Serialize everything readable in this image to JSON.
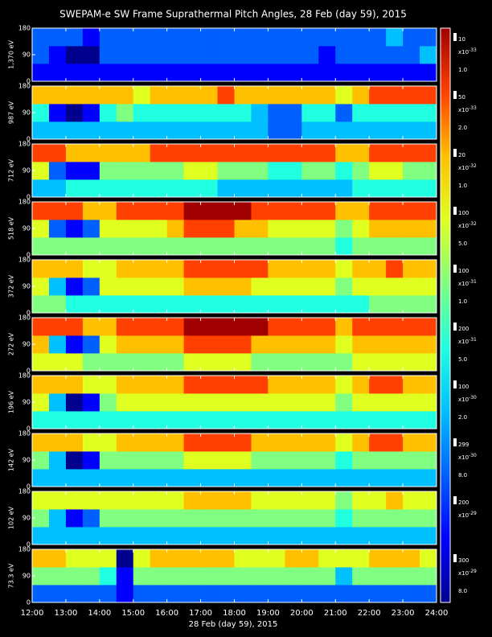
{
  "title": "SWEPAM-e SW Frame Suprathermal Pitch Angles, 28 Feb (day  59), 2015",
  "xlabel": "28 Feb (day  59), 2015",
  "xlim": [
    12,
    24
  ],
  "xticks": [
    {
      "value": 12,
      "label": "12:00"
    },
    {
      "value": 13,
      "label": "13:00"
    },
    {
      "value": 14,
      "label": "14:00"
    },
    {
      "value": 15,
      "label": "15:00"
    },
    {
      "value": 16,
      "label": "16:00"
    },
    {
      "value": 17,
      "label": "17:00"
    },
    {
      "value": 18,
      "label": "18:00"
    },
    {
      "value": 19,
      "label": "19:00"
    },
    {
      "value": 20,
      "label": "20:00"
    },
    {
      "value": 21,
      "label": "21:00"
    },
    {
      "value": 22,
      "label": "22:00"
    },
    {
      "value": 23,
      "label": "23:00"
    },
    {
      "value": 24,
      "label": "24:00"
    }
  ],
  "colors": [
    "#00008f",
    "#0000ff",
    "#0060ff",
    "#00c0ff",
    "#20ffdf",
    "#80ff80",
    "#dfff20",
    "#ffc000",
    "#ff4000",
    "#a00000"
  ],
  "chart_data": [
    {
      "type": "heatmap",
      "ylabel": "1,370 eV",
      "ylim": [
        0,
        180
      ],
      "yticks": [
        0,
        90,
        180
      ],
      "colorbar": {
        "top": "10",
        "scale": "x10",
        "exponent": "-33",
        "bottom": "1.0"
      },
      "z": [
        [
          1,
          1,
          1,
          1,
          1,
          1,
          1,
          1,
          1,
          1,
          1,
          1,
          1,
          1,
          1,
          1,
          1,
          1,
          1,
          1,
          1,
          1,
          1,
          1
        ],
        [
          2,
          1,
          0,
          0,
          2,
          2,
          2,
          2,
          2,
          2,
          2,
          2,
          2,
          2,
          2,
          2,
          2,
          1,
          2,
          2,
          2,
          2,
          2,
          3
        ],
        [
          2,
          2,
          2,
          1,
          2,
          2,
          2,
          2,
          2,
          2,
          2,
          2,
          2,
          2,
          2,
          2,
          2,
          2,
          2,
          2,
          2,
          3,
          2,
          2
        ]
      ]
    },
    {
      "type": "heatmap",
      "ylabel": "987 eV",
      "ylim": [
        0,
        180
      ],
      "yticks": [
        0,
        90,
        180
      ],
      "colorbar": {
        "top": "50",
        "scale": "x10",
        "exponent": "-33",
        "bottom": "2.0"
      },
      "z": [
        [
          3,
          3,
          3,
          3,
          3,
          3,
          3,
          3,
          3,
          3,
          3,
          3,
          3,
          3,
          2,
          2,
          3,
          3,
          3,
          3,
          3,
          3,
          3,
          3
        ],
        [
          4,
          1,
          0,
          1,
          4,
          5,
          4,
          4,
          4,
          4,
          4,
          4,
          4,
          3,
          2,
          2,
          4,
          4,
          2,
          4,
          4,
          4,
          4,
          4
        ],
        [
          7,
          7,
          7,
          7,
          7,
          7,
          6,
          7,
          7,
          7,
          7,
          8,
          7,
          7,
          7,
          7,
          7,
          7,
          6,
          7,
          8,
          8,
          8,
          8
        ]
      ]
    },
    {
      "type": "heatmap",
      "ylabel": "712 eV",
      "ylim": [
        0,
        180
      ],
      "yticks": [
        0,
        90,
        180
      ],
      "colorbar": {
        "top": "20",
        "scale": "x10",
        "exponent": "-32",
        "bottom": "1.0"
      },
      "z": [
        [
          3,
          3,
          4,
          4,
          4,
          4,
          4,
          4,
          4,
          4,
          4,
          3,
          3,
          3,
          3,
          3,
          3,
          3,
          3,
          4,
          4,
          4,
          4,
          4
        ],
        [
          6,
          2,
          1,
          1,
          5,
          5,
          5,
          5,
          5,
          6,
          6,
          5,
          5,
          5,
          4,
          4,
          5,
          5,
          4,
          5,
          6,
          6,
          5,
          5
        ],
        [
          8,
          8,
          7,
          7,
          7,
          7,
          7,
          8,
          8,
          8,
          8,
          8,
          8,
          8,
          8,
          8,
          8,
          8,
          7,
          7,
          8,
          8,
          8,
          8
        ]
      ]
    },
    {
      "type": "heatmap",
      "ylabel": "518 eV",
      "ylim": [
        0,
        180
      ],
      "yticks": [
        0,
        90,
        180
      ],
      "colorbar": {
        "top": "100",
        "scale": "x10",
        "exponent": "-32",
        "bottom": "5.0"
      },
      "z": [
        [
          5,
          5,
          5,
          5,
          5,
          5,
          5,
          5,
          5,
          5,
          5,
          5,
          5,
          5,
          5,
          5,
          5,
          5,
          4,
          5,
          5,
          5,
          5,
          5
        ],
        [
          6,
          2,
          1,
          2,
          6,
          6,
          6,
          6,
          7,
          8,
          8,
          8,
          7,
          7,
          6,
          6,
          6,
          6,
          5,
          6,
          7,
          7,
          7,
          7
        ],
        [
          8,
          8,
          8,
          7,
          7,
          8,
          8,
          8,
          8,
          9,
          9,
          9,
          9,
          8,
          8,
          8,
          8,
          8,
          7,
          7,
          8,
          8,
          8,
          8
        ]
      ]
    },
    {
      "type": "heatmap",
      "ylabel": "372 eV",
      "ylim": [
        0,
        180
      ],
      "yticks": [
        0,
        90,
        180
      ],
      "colorbar": {
        "top": "100",
        "scale": "x10",
        "exponent": "-31",
        "bottom": "1.0"
      },
      "z": [
        [
          5,
          5,
          4,
          4,
          4,
          4,
          4,
          4,
          4,
          4,
          4,
          4,
          4,
          4,
          4,
          4,
          4,
          4,
          4,
          4,
          5,
          5,
          5,
          5
        ],
        [
          6,
          3,
          1,
          2,
          6,
          6,
          6,
          6,
          6,
          7,
          7,
          7,
          7,
          6,
          6,
          6,
          6,
          6,
          5,
          6,
          6,
          6,
          6,
          6
        ],
        [
          7,
          7,
          7,
          6,
          6,
          7,
          7,
          7,
          7,
          8,
          8,
          8,
          8,
          8,
          7,
          7,
          7,
          7,
          6,
          7,
          7,
          8,
          7,
          7
        ]
      ]
    },
    {
      "type": "heatmap",
      "ylabel": "272 eV",
      "ylim": [
        0,
        180
      ],
      "yticks": [
        0,
        90,
        180
      ],
      "colorbar": {
        "top": "200",
        "scale": "x10",
        "exponent": "-31",
        "bottom": "5.0"
      },
      "z": [
        [
          6,
          6,
          6,
          5,
          5,
          5,
          5,
          5,
          5,
          6,
          6,
          6,
          6,
          5,
          5,
          5,
          5,
          5,
          5,
          6,
          6,
          6,
          6,
          6
        ],
        [
          7,
          3,
          1,
          2,
          6,
          7,
          7,
          7,
          7,
          8,
          8,
          8,
          8,
          7,
          7,
          7,
          7,
          7,
          6,
          7,
          7,
          7,
          7,
          7
        ],
        [
          8,
          8,
          8,
          7,
          7,
          8,
          8,
          8,
          8,
          9,
          9,
          9,
          9,
          9,
          8,
          8,
          8,
          8,
          7,
          8,
          8,
          8,
          8,
          8
        ]
      ]
    },
    {
      "type": "heatmap",
      "ylabel": "196 eV",
      "ylim": [
        0,
        180
      ],
      "yticks": [
        0,
        90,
        180
      ],
      "colorbar": {
        "top": "100",
        "scale": "x10",
        "exponent": "-30",
        "bottom": "2.0"
      },
      "z": [
        [
          4,
          4,
          4,
          4,
          4,
          4,
          4,
          4,
          4,
          4,
          4,
          4,
          4,
          4,
          4,
          4,
          4,
          4,
          4,
          4,
          4,
          4,
          4,
          4
        ],
        [
          6,
          3,
          0,
          1,
          5,
          6,
          6,
          6,
          6,
          6,
          6,
          6,
          6,
          6,
          6,
          6,
          6,
          6,
          5,
          6,
          6,
          6,
          6,
          6
        ],
        [
          7,
          7,
          7,
          6,
          6,
          7,
          7,
          7,
          7,
          8,
          8,
          8,
          8,
          8,
          7,
          7,
          7,
          7,
          6,
          7,
          8,
          8,
          7,
          7
        ]
      ]
    },
    {
      "type": "heatmap",
      "ylabel": "142 eV",
      "ylim": [
        0,
        180
      ],
      "yticks": [
        0,
        90,
        180
      ],
      "colorbar": {
        "top": "299",
        "scale": "x10",
        "exponent": "-30",
        "bottom": "8.0"
      },
      "z": [
        [
          3,
          3,
          3,
          3,
          3,
          3,
          3,
          3,
          3,
          3,
          3,
          3,
          3,
          3,
          3,
          3,
          3,
          3,
          3,
          3,
          3,
          3,
          3,
          3
        ],
        [
          5,
          3,
          0,
          1,
          5,
          5,
          5,
          5,
          5,
          6,
          6,
          6,
          6,
          5,
          5,
          5,
          5,
          5,
          4,
          5,
          5,
          5,
          5,
          5
        ],
        [
          7,
          7,
          7,
          6,
          6,
          7,
          7,
          7,
          7,
          8,
          8,
          8,
          8,
          7,
          7,
          7,
          7,
          7,
          6,
          7,
          8,
          8,
          7,
          7
        ]
      ]
    },
    {
      "type": "heatmap",
      "ylabel": "102 eV",
      "ylim": [
        0,
        180
      ],
      "yticks": [
        0,
        90,
        180
      ],
      "colorbar": {
        "top": "200",
        "scale": "x10",
        "exponent": "-29"
      },
      "z": [
        [
          3,
          3,
          3,
          3,
          3,
          3,
          3,
          3,
          3,
          3,
          3,
          3,
          3,
          3,
          3,
          3,
          3,
          3,
          3,
          3,
          3,
          3,
          3,
          3
        ],
        [
          5,
          3,
          1,
          2,
          5,
          5,
          5,
          5,
          5,
          5,
          5,
          5,
          5,
          5,
          5,
          5,
          5,
          5,
          4,
          5,
          5,
          5,
          5,
          5
        ],
        [
          6,
          6,
          6,
          6,
          6,
          6,
          6,
          6,
          6,
          7,
          7,
          7,
          7,
          6,
          6,
          6,
          6,
          6,
          5,
          6,
          6,
          7,
          6,
          6
        ]
      ]
    },
    {
      "type": "heatmap",
      "ylabel": "73.3 eV",
      "ylim": [
        0,
        180
      ],
      "yticks": [
        0,
        90,
        180
      ],
      "colorbar": {
        "top": "300",
        "scale": "x10",
        "exponent": "-29",
        "bottom": "8.0"
      },
      "z": [
        [
          2,
          2,
          2,
          2,
          2,
          1,
          2,
          2,
          2,
          2,
          2,
          2,
          2,
          2,
          2,
          2,
          2,
          2,
          2,
          2,
          2,
          2,
          2,
          2
        ],
        [
          5,
          5,
          5,
          5,
          4,
          1,
          5,
          5,
          5,
          5,
          5,
          5,
          5,
          5,
          5,
          5,
          5,
          5,
          3,
          5,
          5,
          5,
          5,
          5
        ],
        [
          7,
          7,
          6,
          6,
          6,
          0,
          6,
          7,
          7,
          7,
          7,
          7,
          6,
          6,
          6,
          7,
          7,
          6,
          6,
          6,
          7,
          7,
          7,
          6
        ]
      ]
    }
  ]
}
